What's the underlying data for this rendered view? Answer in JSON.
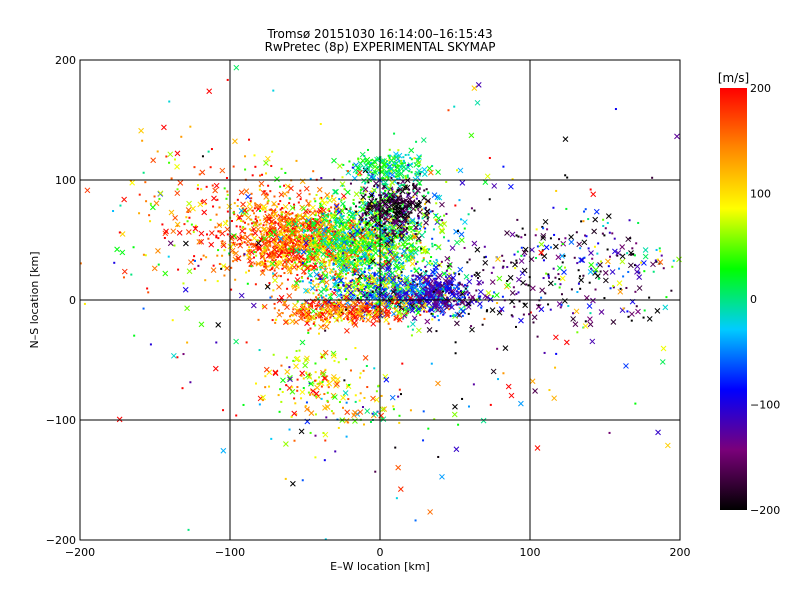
{
  "header": {
    "line1": "Tromsø 20151030 16:14:00–16:15:43",
    "line2": "RwPretec (8p) EXPERIMENTAL SKYMAP"
  },
  "chart_data": {
    "type": "scatter",
    "xlabel": "E–W location [km]",
    "ylabel": "N–S location [km]",
    "xlim": [
      -200,
      200
    ],
    "ylim": [
      -200,
      200
    ],
    "xticks": [
      -200,
      -100,
      0,
      100,
      200
    ],
    "yticks": [
      -200,
      -100,
      0,
      100,
      200
    ],
    "grid": true,
    "colorbar": {
      "label": "[m/s]",
      "range": [
        -200,
        200
      ],
      "ticks": [
        200,
        100,
        0,
        -100,
        -200
      ],
      "colormap": [
        "#000000",
        "#7a007a",
        "#0000ff",
        "#00ccff",
        "#00ff00",
        "#ffff00",
        "#ff8800",
        "#ff0000"
      ]
    },
    "markers": [
      "dot",
      "x"
    ],
    "clusters": [
      {
        "x": -60,
        "y": 50,
        "sx": 22,
        "sy": 16,
        "n": 900,
        "v": 160,
        "vs": 45
      },
      {
        "x": -20,
        "y": 45,
        "sx": 20,
        "sy": 18,
        "n": 700,
        "v": 60,
        "vs": 60
      },
      {
        "x": 0,
        "y": 55,
        "sx": 22,
        "sy": 20,
        "n": 700,
        "v": 20,
        "vs": 50
      },
      {
        "x": 10,
        "y": 75,
        "sx": 12,
        "sy": 12,
        "n": 300,
        "v": -180,
        "vs": 25
      },
      {
        "x": 5,
        "y": 110,
        "sx": 12,
        "sy": 8,
        "n": 200,
        "v": 10,
        "vs": 30
      },
      {
        "x": 10,
        "y": 5,
        "sx": 25,
        "sy": 10,
        "n": 700,
        "v": -40,
        "vs": 90
      },
      {
        "x": 40,
        "y": 5,
        "sx": 12,
        "sy": 8,
        "n": 250,
        "v": -110,
        "vs": 35
      },
      {
        "x": -30,
        "y": -10,
        "sx": 20,
        "sy": 6,
        "n": 300,
        "v": 160,
        "vs": 50
      },
      {
        "x": 110,
        "y": 20,
        "sx": 45,
        "sy": 30,
        "n": 250,
        "v": -170,
        "vs": 50
      },
      {
        "x": 150,
        "y": 30,
        "sx": 30,
        "sy": 20,
        "n": 90,
        "v": -30,
        "vs": 80
      },
      {
        "x": -100,
        "y": 70,
        "sx": 40,
        "sy": 30,
        "n": 250,
        "v": 140,
        "vs": 70
      },
      {
        "x": -45,
        "y": -65,
        "sx": 15,
        "sy": 15,
        "n": 120,
        "v": 110,
        "vs": 40
      },
      {
        "x": -20,
        "y": -90,
        "sx": 25,
        "sy": 15,
        "n": 80,
        "v": 40,
        "vs": 80
      },
      {
        "x": 0,
        "y": 0,
        "sx": 110,
        "sy": 90,
        "n": 250,
        "v": 0,
        "vs": 160
      }
    ]
  }
}
